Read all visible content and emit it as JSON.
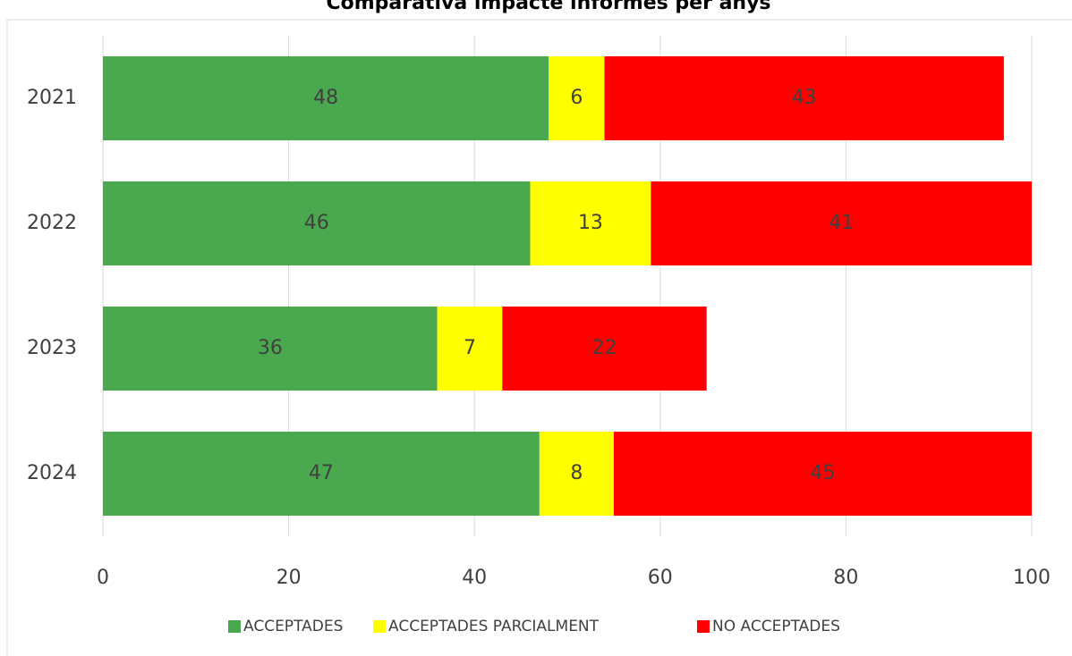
{
  "chart_data": {
    "type": "bar",
    "orientation": "horizontal",
    "stacked": true,
    "title": "Comparativa impacte informes per anys",
    "categories": [
      "2021",
      "2022",
      "2023",
      "2024"
    ],
    "series": [
      {
        "name": "ACCEPTADES",
        "color": "#4aa84e",
        "values": [
          48,
          46,
          36,
          47
        ]
      },
      {
        "name": "ACCEPTADES PARCIALMENT",
        "color": "#ffff00",
        "values": [
          6,
          13,
          7,
          8
        ]
      },
      {
        "name": "NO ACCEPTADES",
        "color": "#ff0000",
        "values": [
          43,
          41,
          22,
          45
        ]
      }
    ],
    "xlim": [
      0,
      100
    ],
    "xticks": [
      0,
      20,
      40,
      60,
      80,
      100
    ],
    "grid": true,
    "legend": "bottom"
  }
}
